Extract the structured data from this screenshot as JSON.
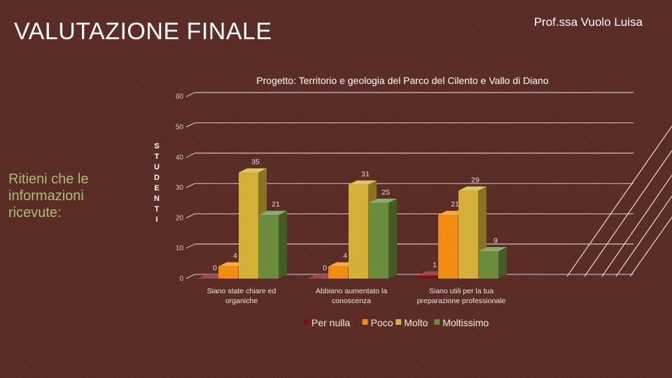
{
  "slide": {
    "title": "VALUTAZIONE FINALE",
    "author": "Prof.ssa Vuolo Luisa",
    "question": "Ritieni che le informazioni ricevute:"
  },
  "chart_data": {
    "type": "bar",
    "title": "Progetto:  Territorio e geologia del Parco del Cilento e Vallo di Diano",
    "ylabel": "STUDENTI",
    "xlabel": "",
    "categories": [
      "Siano state chiare ed organiche",
      "Abbiano aumentato la conoscenza",
      "Siano utili per la tua preparazione professionale"
    ],
    "series": [
      {
        "name": "Per nulla",
        "values": [
          0,
          0,
          1
        ],
        "color": "#7a1010"
      },
      {
        "name": "Poco",
        "values": [
          4,
          4,
          21
        ],
        "color": "#f08c10"
      },
      {
        "name": "Molto",
        "values": [
          35,
          31,
          29
        ],
        "color": "#d4b038"
      },
      {
        "name": "Moltissimo",
        "values": [
          21,
          25,
          9
        ],
        "color": "#6a8c3c"
      }
    ],
    "ylim": [
      0,
      60
    ],
    "yticks": [
      0,
      10,
      20,
      30,
      40,
      50,
      60
    ],
    "grid": true,
    "three_d": true,
    "legend": "bottom"
  }
}
